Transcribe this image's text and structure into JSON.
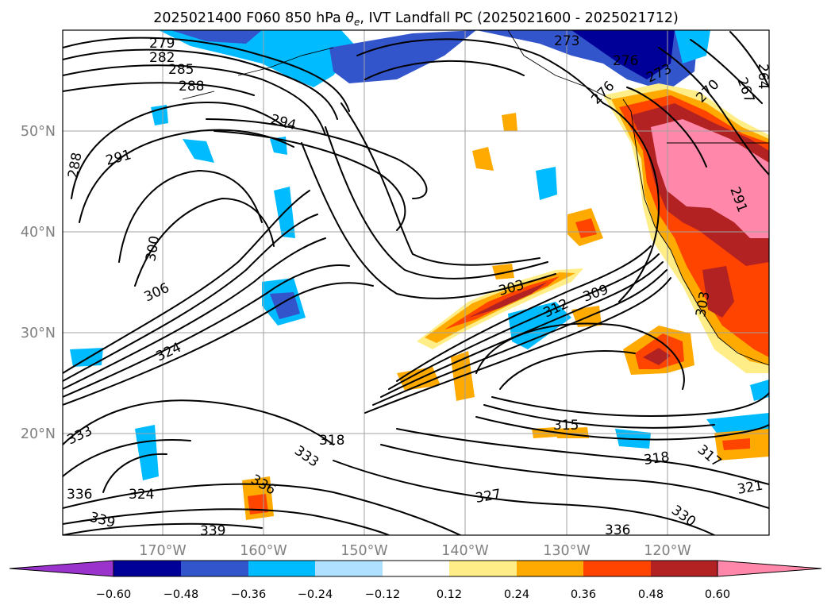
{
  "title_prefix": "2025021400 F060 850 hPa ",
  "title_symbol": "θ",
  "title_subscript": "e",
  "title_suffix": ", IVT Landfall PC (2025021600 - 2025021712)",
  "map": {
    "lon_ticks": [
      "170°W",
      "160°W",
      "150°W",
      "140°W",
      "130°W",
      "120°W"
    ],
    "lat_ticks": [
      "50°N",
      "40°N",
      "30°N",
      "20°N"
    ],
    "grid": true
  },
  "contour_labels": [
    "279",
    "282",
    "285",
    "288",
    "291",
    "294",
    "288",
    "300",
    "306",
    "324",
    "303",
    "312",
    "309",
    "273",
    "276",
    "273",
    "276",
    "270",
    "267",
    "264",
    "291",
    "303",
    "333",
    "318",
    "333",
    "336",
    "324",
    "336",
    "339",
    "339",
    "327",
    "315",
    "318",
    "317",
    "321",
    "330",
    "336"
  ],
  "colorbar": {
    "ticks": [
      "−0.60",
      "−0.48",
      "−0.36",
      "−0.24",
      "−0.12",
      "0.12",
      "0.24",
      "0.36",
      "0.48",
      "0.60"
    ],
    "colors": [
      "#9933cc",
      "#000099",
      "#3355cc",
      "#00bbff",
      "#b0e0ff",
      "#ffffff",
      "#ffee88",
      "#ffaa00",
      "#ff4400",
      "#b22222",
      "#ff88aa"
    ],
    "extend": "both"
  }
}
